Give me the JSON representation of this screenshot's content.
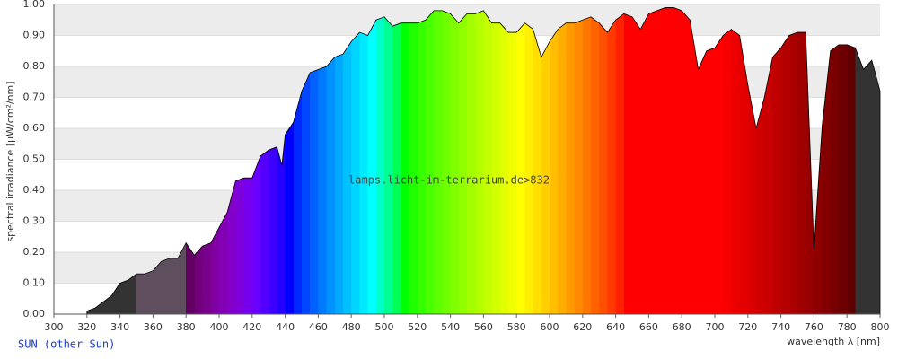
{
  "chart_data": {
    "type": "area",
    "xlabel": "wavelength λ [nm]",
    "ylabel": "spectral irradiance [µW/cm²/nm]",
    "watermark": "lamps.licht-im-terrarium.de>832",
    "caption": "SUN (other Sun)",
    "x": [
      320,
      325,
      330,
      335,
      340,
      345,
      350,
      355,
      360,
      365,
      370,
      375,
      380,
      385,
      390,
      395,
      400,
      405,
      410,
      415,
      420,
      425,
      430,
      435,
      438,
      440,
      445,
      450,
      455,
      460,
      465,
      470,
      475,
      480,
      485,
      490,
      495,
      500,
      505,
      510,
      515,
      520,
      525,
      530,
      535,
      540,
      545,
      550,
      555,
      560,
      565,
      570,
      575,
      580,
      585,
      590,
      595,
      600,
      605,
      610,
      615,
      620,
      625,
      630,
      635,
      640,
      645,
      650,
      655,
      660,
      665,
      670,
      675,
      680,
      685,
      690,
      695,
      700,
      705,
      710,
      715,
      720,
      725,
      730,
      735,
      740,
      745,
      750,
      755,
      760,
      765,
      770,
      775,
      780,
      785,
      790,
      795,
      800
    ],
    "values": [
      0.01,
      0.02,
      0.04,
      0.06,
      0.1,
      0.11,
      0.13,
      0.13,
      0.14,
      0.17,
      0.18,
      0.18,
      0.23,
      0.19,
      0.22,
      0.23,
      0.28,
      0.33,
      0.43,
      0.44,
      0.44,
      0.51,
      0.53,
      0.54,
      0.48,
      0.58,
      0.62,
      0.72,
      0.78,
      0.79,
      0.8,
      0.83,
      0.84,
      0.88,
      0.91,
      0.9,
      0.95,
      0.96,
      0.93,
      0.94,
      0.94,
      0.94,
      0.95,
      0.98,
      0.98,
      0.97,
      0.94,
      0.97,
      0.97,
      0.98,
      0.94,
      0.94,
      0.91,
      0.91,
      0.94,
      0.92,
      0.83,
      0.88,
      0.92,
      0.94,
      0.94,
      0.95,
      0.96,
      0.94,
      0.91,
      0.95,
      0.97,
      0.96,
      0.92,
      0.97,
      0.98,
      0.99,
      0.99,
      0.98,
      0.95,
      0.79,
      0.85,
      0.86,
      0.9,
      0.92,
      0.9,
      0.74,
      0.6,
      0.7,
      0.83,
      0.86,
      0.9,
      0.91,
      0.91,
      0.21,
      0.61,
      0.85,
      0.87,
      0.87,
      0.86,
      0.79,
      0.82,
      0.72
    ],
    "xlim": [
      300,
      800
    ],
    "ylim": [
      0,
      1
    ],
    "xticks": [
      300,
      320,
      340,
      360,
      380,
      400,
      420,
      440,
      460,
      480,
      500,
      520,
      540,
      560,
      580,
      600,
      620,
      640,
      660,
      680,
      700,
      720,
      740,
      760,
      780,
      800
    ],
    "yticks": [
      {
        "value": 0,
        "label": "0.00"
      },
      {
        "value": 0.1,
        "label": "0.10"
      },
      {
        "value": 0.2,
        "label": "0.20"
      },
      {
        "value": 0.3,
        "label": "0.30"
      },
      {
        "value": 0.4,
        "label": "0.40"
      },
      {
        "value": 0.5,
        "label": "0.50"
      },
      {
        "value": 0.6,
        "label": "0.60"
      },
      {
        "value": 0.7,
        "label": "0.70"
      },
      {
        "value": 0.8,
        "label": "0.80"
      },
      {
        "value": 0.9,
        "label": "0.90"
      },
      {
        "value": 1,
        "label": "1.00"
      }
    ],
    "grid": true
  }
}
